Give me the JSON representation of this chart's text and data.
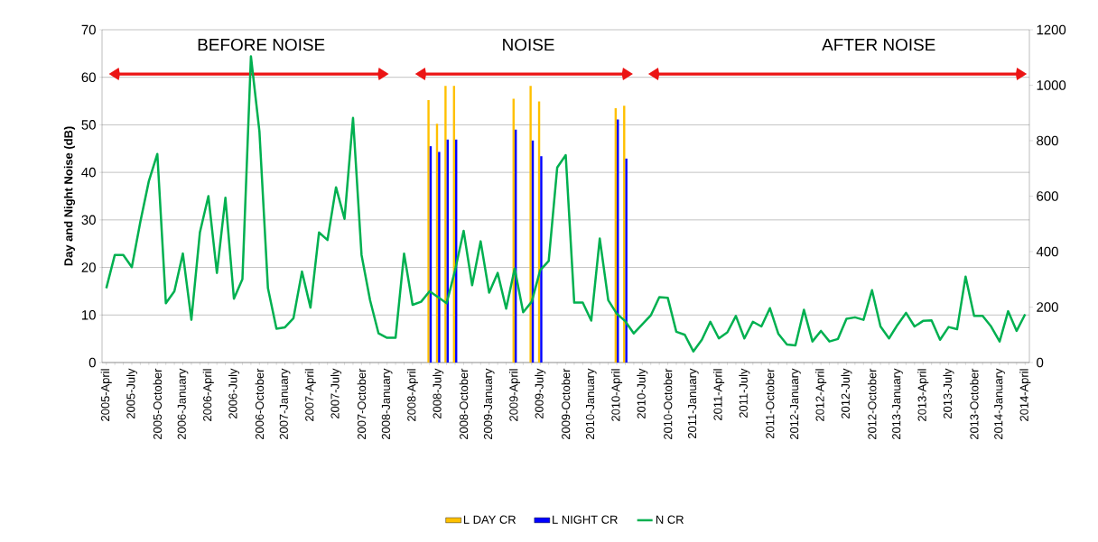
{
  "chart_data": {
    "type": "bar",
    "ylabel": "Day and Night Noise (dB)",
    "categories": [
      "2005-April",
      null,
      null,
      "2005-July",
      null,
      null,
      "2005-October",
      null,
      null,
      "2006-January",
      null,
      null,
      "2006-April",
      null,
      null,
      "2006-July",
      null,
      null,
      "2006-October",
      null,
      null,
      "2007-January",
      null,
      null,
      "2007-April",
      null,
      null,
      "2007-July",
      null,
      null,
      "2007-October",
      null,
      null,
      "2008-January",
      null,
      null,
      "2008-April",
      null,
      null,
      "2008-July",
      null,
      null,
      "2008-October",
      null,
      null,
      "2009-January",
      null,
      null,
      "2009-April",
      null,
      null,
      "2009-July",
      null,
      null,
      "2009-October",
      null,
      null,
      "2010-January",
      null,
      null,
      "2010-April",
      null,
      null,
      "2010-July",
      null,
      null,
      "2010-October",
      null,
      null,
      "2011-January",
      null,
      null,
      "2011-April",
      null,
      null,
      "2011-July",
      null,
      null,
      "2011-October",
      null,
      null,
      "2012-January",
      null,
      null,
      "2012-April",
      null,
      null,
      "2012-July",
      null,
      null,
      "2012-October",
      null,
      null,
      "2013-January",
      null,
      null,
      "2013-April",
      null,
      null,
      "2013-July",
      null,
      null,
      "2013-October",
      null,
      null,
      "2014-January",
      null,
      null,
      "2014-April"
    ],
    "series": [
      {
        "name": "L DAY CR",
        "color": "#ffc000",
        "values": [
          null,
          null,
          null,
          null,
          null,
          null,
          null,
          null,
          null,
          null,
          null,
          null,
          null,
          null,
          null,
          null,
          null,
          null,
          null,
          null,
          null,
          null,
          null,
          null,
          null,
          null,
          null,
          null,
          null,
          null,
          null,
          null,
          null,
          null,
          null,
          null,
          null,
          null,
          55.2,
          50.2,
          58.2,
          58.2,
          null,
          null,
          null,
          null,
          null,
          null,
          55.5,
          null,
          58.2,
          54.9,
          null,
          null,
          null,
          null,
          null,
          null,
          null,
          null,
          53.5,
          54.0,
          null,
          null,
          null,
          null,
          null,
          null,
          null,
          null,
          null,
          null,
          null,
          null,
          null,
          null,
          null,
          null,
          null,
          null,
          null,
          null,
          null,
          null,
          null,
          null,
          null,
          null,
          null,
          null,
          null,
          null,
          null,
          null,
          null,
          null,
          null,
          null,
          null,
          null,
          null,
          null,
          null,
          null,
          null,
          null,
          null,
          null,
          null
        ]
      },
      {
        "name": "L NIGHT CR",
        "color": "#0000ff",
        "values": [
          null,
          null,
          null,
          null,
          null,
          null,
          null,
          null,
          null,
          null,
          null,
          null,
          null,
          null,
          null,
          null,
          null,
          null,
          null,
          null,
          null,
          null,
          null,
          null,
          null,
          null,
          null,
          null,
          null,
          null,
          null,
          null,
          null,
          null,
          null,
          null,
          null,
          null,
          45.5,
          44.3,
          46.9,
          46.9,
          null,
          null,
          null,
          null,
          null,
          null,
          49.0,
          null,
          46.7,
          43.4,
          null,
          null,
          null,
          null,
          null,
          null,
          null,
          null,
          51.1,
          42.9,
          null,
          null,
          null,
          null,
          null,
          null,
          null,
          null,
          null,
          null,
          null,
          null,
          null,
          null,
          null,
          null,
          null,
          null,
          null,
          null,
          null,
          null,
          null,
          null,
          null,
          null,
          null,
          null,
          null,
          null,
          null,
          null,
          null,
          null,
          null,
          null,
          null,
          null,
          null,
          null,
          null,
          null,
          null,
          null,
          null,
          null,
          null
        ]
      },
      {
        "name": "N CR",
        "type": "line",
        "axis": "y2",
        "color": "#00b050",
        "values": [
          268,
          388,
          388,
          344,
          507,
          654,
          752,
          214,
          257,
          393,
          154,
          469,
          600,
          323,
          594,
          230,
          301,
          1104,
          833,
          268,
          122,
          127,
          160,
          328,
          198,
          469,
          442,
          632,
          518,
          882,
          388,
          225,
          105,
          89,
          89,
          393,
          208,
          219,
          257,
          236,
          214,
          333,
          475,
          279,
          437,
          252,
          323,
          194,
          339,
          181,
          219,
          333,
          366,
          703,
          748,
          216,
          216,
          151,
          447,
          225,
          176,
          149,
          105,
          138,
          170,
          236,
          233,
          111,
          100,
          40,
          82,
          147,
          87,
          109,
          168,
          87,
          147,
          130,
          196,
          103,
          65,
          62,
          190,
          76,
          114,
          76,
          85,
          158,
          163,
          154,
          261,
          130,
          87,
          136,
          179,
          130,
          150,
          152,
          82,
          128,
          120,
          310,
          168,
          168,
          130,
          76,
          185,
          114,
          174
        ]
      }
    ],
    "ylim": [
      0,
      70
    ],
    "yticks": [
      0,
      10,
      20,
      30,
      40,
      50,
      60,
      70
    ],
    "y2lim": [
      0,
      1200
    ],
    "y2ticks": [
      0,
      200,
      400,
      600,
      800,
      1000,
      1200
    ],
    "grid": "y",
    "legend": "bottom",
    "annotations": [
      "BEFORE NOISE",
      "NOISE",
      "AFTER NOISE"
    ]
  }
}
